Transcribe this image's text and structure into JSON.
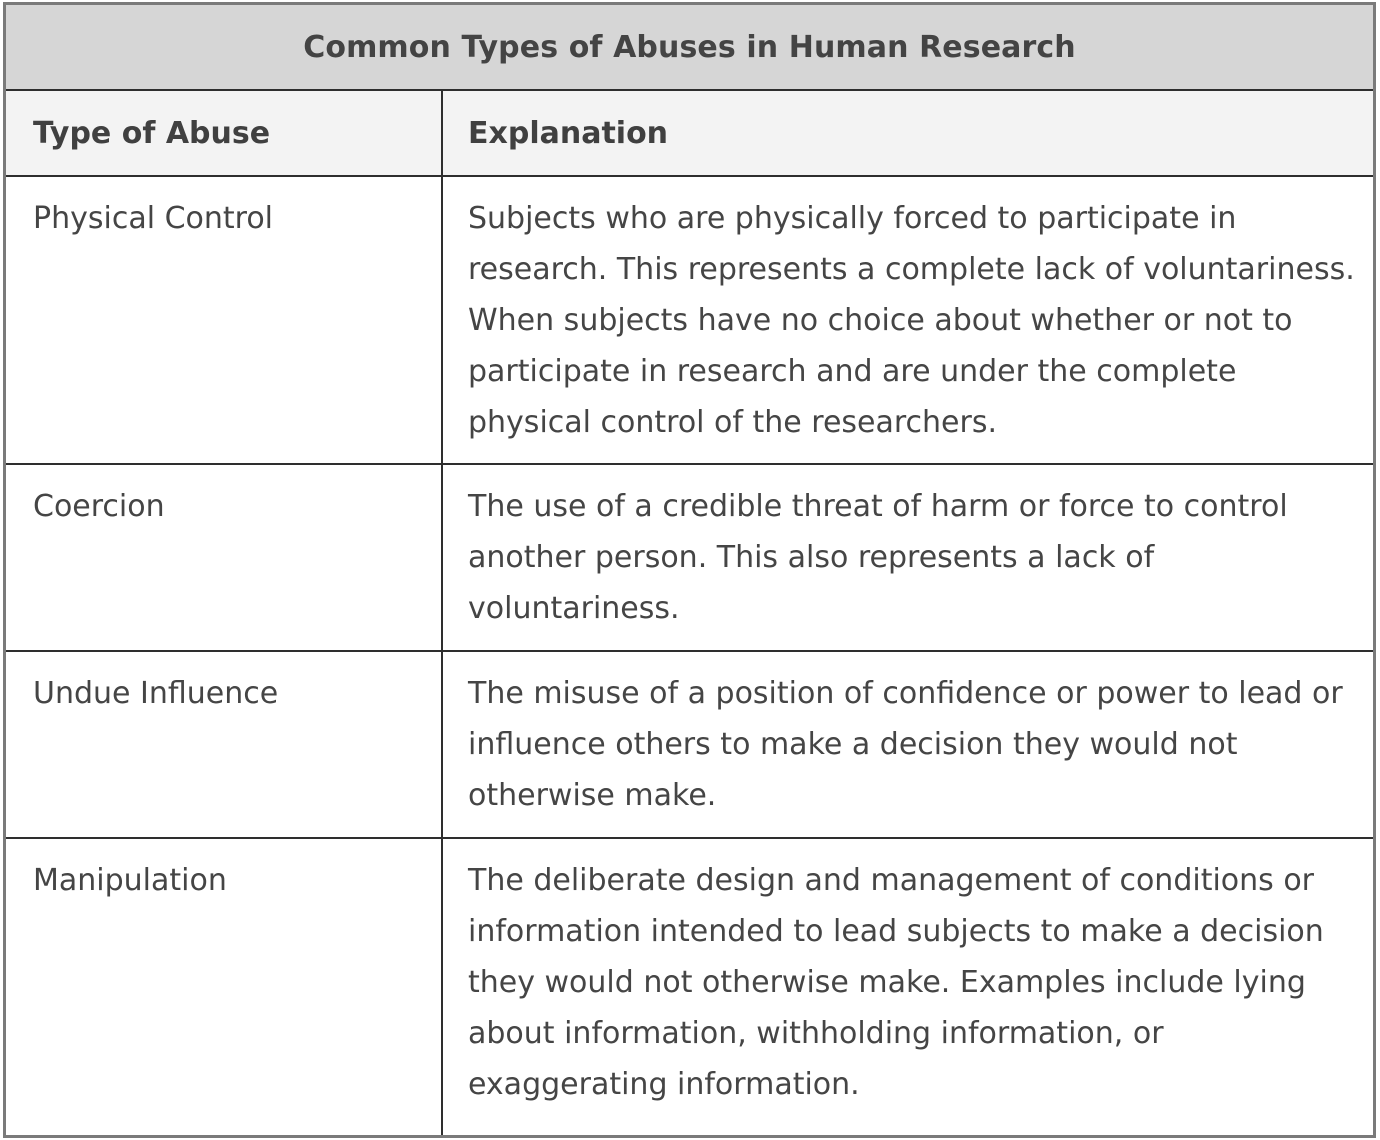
{
  "table": {
    "title": "Common Types of Abuses in Human Research",
    "headers": {
      "type": "Type of Abuse",
      "explanation": "Explanation"
    },
    "rows": [
      {
        "type": "Physical Control",
        "explanation": "Subjects who are physically forced to participate in research. This represents a complete lack of voluntariness. When subjects have no choice about whether or not to participate in research and are under the complete physical control of the researchers."
      },
      {
        "type": "Coercion",
        "explanation": "The use of a credible threat of harm or force to control another person. This also represents a lack of voluntariness."
      },
      {
        "type": "Undue Influence",
        "explanation": "The misuse of a position of confidence or power to lead or influence others to make a decision they would not otherwise make."
      },
      {
        "type": "Manipulation",
        "explanation": "The deliberate design and management of conditions or information intended to lead subjects to make a decision they would not otherwise make. Examples include lying about information, withholding information, or exaggerating information."
      }
    ]
  },
  "colors": {
    "title_background": "#d6d6d6",
    "header_background": "#f3f3f3",
    "border": "#2e2e2e",
    "outer_border": "#7a7a7a",
    "text": "#404040"
  }
}
